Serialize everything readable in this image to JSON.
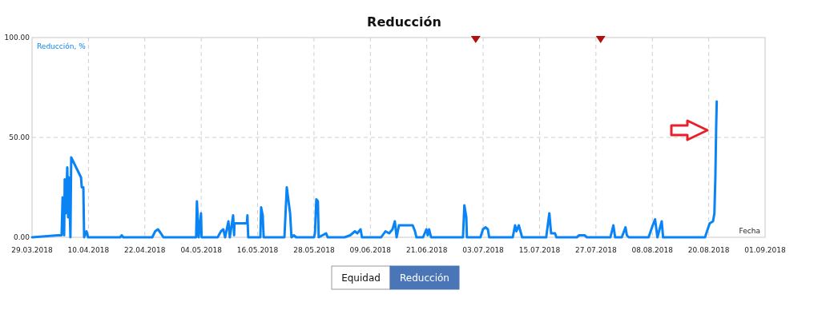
{
  "chart_data": {
    "type": "line",
    "title": "Reducción",
    "xlabel": "Fecha",
    "ylabel": "Reducción, %",
    "xlim": [
      "2018-03-29",
      "2018-09-01"
    ],
    "xticks": [
      {
        "value": "2018-03-29",
        "label": "29.03.2018"
      },
      {
        "value": "2018-04-10",
        "label": "10.04.2018"
      },
      {
        "value": "2018-04-22",
        "label": "22.04.2018"
      },
      {
        "value": "2018-05-04",
        "label": "04.05.2018"
      },
      {
        "value": "2018-05-16",
        "label": "16.05.2018"
      },
      {
        "value": "2018-05-28",
        "label": "28.05.2018"
      },
      {
        "value": "2018-06-09",
        "label": "09.06.2018"
      },
      {
        "value": "2018-06-21",
        "label": "21.06.2018"
      },
      {
        "value": "2018-07-03",
        "label": "03.07.2018"
      },
      {
        "value": "2018-07-15",
        "label": "15.07.2018"
      },
      {
        "value": "2018-07-27",
        "label": "27.07.2018"
      },
      {
        "value": "2018-08-08",
        "label": "08.08.2018"
      },
      {
        "value": "2018-08-20",
        "label": "20.08.2018"
      },
      {
        "value": "2018-09-01",
        "label": "01.09.2018"
      }
    ],
    "ylim": [
      0,
      100
    ],
    "yticks": [
      {
        "value": 0,
        "label": "0.00"
      },
      {
        "value": 50,
        "label": "50.00"
      },
      {
        "value": 100,
        "label": "100.00"
      }
    ],
    "grid": true,
    "line_style": "solid",
    "annotations": [
      "Equidad",
      "Reducción"
    ],
    "series": [
      {
        "color": "#0a84f5",
        "x": [
          "2018-03-29T00:00",
          "2018-04-03T11:00",
          "2018-04-04T07:00",
          "2018-04-04T12:00",
          "2018-04-04T20:00",
          "2018-04-04T23:00",
          "2018-04-05T04:00",
          "2018-04-05T12:00",
          "2018-04-05T16:00",
          "2018-04-05T20:00",
          "2018-04-06T04:00",
          "2018-04-06T08:00",
          "2018-04-08T10:00",
          "2018-04-08T14:00",
          "2018-04-08T22:00",
          "2018-04-09T02:00",
          "2018-04-09T14:00",
          "2018-04-09T22:00",
          "2018-04-16T18:00",
          "2018-04-17T02:00",
          "2018-04-17T10:00",
          "2018-04-23T14:00",
          "2018-04-24T05:00",
          "2018-04-24T19:00",
          "2018-04-25T10:00",
          "2018-04-25T23:00",
          "2018-05-02T22:00",
          "2018-05-03T02:00",
          "2018-05-03T11:00",
          "2018-05-03T23:00",
          "2018-05-04T02:00",
          "2018-05-07T12:00",
          "2018-05-08T05:00",
          "2018-05-08T17:00",
          "2018-05-09T02:00",
          "2018-05-09T19:00",
          "2018-05-10T02:00",
          "2018-05-10T19:00",
          "2018-05-11T00:00",
          "2018-05-11T02:00",
          "2018-05-13T17:00",
          "2018-05-13T20:00",
          "2018-05-14T00:00",
          "2018-05-16T14:00",
          "2018-05-16T18:00",
          "2018-05-17T02:00",
          "2018-05-17T07:00",
          "2018-05-21T17:00",
          "2018-05-22T05:00",
          "2018-05-22T22:00",
          "2018-05-23T05:00",
          "2018-05-23T17:00",
          "2018-05-24T05:00",
          "2018-05-28T00:00",
          "2018-05-28T05:00",
          "2018-05-28T12:00",
          "2018-05-28T20:00",
          "2018-05-29T00:00",
          "2018-05-30T14:00",
          "2018-05-30T22:00",
          "2018-06-03T12:00",
          "2018-06-04T17:00",
          "2018-06-05T17:00",
          "2018-06-06T05:00",
          "2018-06-06T22:00",
          "2018-06-07T05:00",
          "2018-06-11T07:00",
          "2018-06-12T05:00",
          "2018-06-13T00:00",
          "2018-06-13T17:00",
          "2018-06-14T05:00",
          "2018-06-14T14:00",
          "2018-06-15T02:00",
          "2018-06-18T00:00",
          "2018-06-18T12:00",
          "2018-06-18T19:00",
          "2018-06-20T05:00",
          "2018-06-20T22:00",
          "2018-06-21T05:00",
          "2018-06-21T12:00",
          "2018-06-21T22:00",
          "2018-06-28T17:00",
          "2018-06-29T00:00",
          "2018-06-29T10:00",
          "2018-06-29T13:00",
          "2018-07-02T10:00",
          "2018-07-02T23:00",
          "2018-07-03T12:00",
          "2018-07-04T00:00",
          "2018-07-04T07:00",
          "2018-07-09T07:00",
          "2018-07-09T19:00",
          "2018-07-10T02:00",
          "2018-07-10T14:00",
          "2018-07-11T07:00",
          "2018-07-16T10:00",
          "2018-07-17T02:00",
          "2018-07-17T11:00",
          "2018-07-18T07:00",
          "2018-07-18T14:00",
          "2018-07-22T22:00",
          "2018-07-23T10:00",
          "2018-07-24T14:00",
          "2018-07-25T02:00",
          "2018-07-30T02:00",
          "2018-07-30T17:00",
          "2018-07-31T02:00",
          "2018-08-01T12:00",
          "2018-08-02T07:00",
          "2018-08-02T14:00",
          "2018-08-03T00:00",
          "2018-08-07T05:00",
          "2018-08-08T02:00",
          "2018-08-08T14:00",
          "2018-08-09T02:00",
          "2018-08-10T00:00",
          "2018-08-10T07:00",
          "2018-08-15T19:00",
          "2018-08-19T05:00",
          "2018-08-20T05:00",
          "2018-08-20T22:00",
          "2018-08-21T05:00",
          "2018-08-21T10:00",
          "2018-08-21T14:00",
          "2018-08-21T17:00"
        ],
        "values": [
          0,
          1,
          1,
          20,
          1,
          29,
          12,
          35,
          10,
          30,
          0,
          40,
          30,
          25,
          25,
          0,
          3,
          0,
          0,
          1,
          0,
          0,
          3,
          4,
          2,
          0,
          0,
          18,
          0,
          12,
          0,
          0,
          3,
          4,
          0,
          8,
          0,
          11,
          1,
          7,
          7,
          11,
          0,
          0,
          15,
          11,
          0,
          0,
          25,
          12,
          0,
          1,
          0,
          0,
          2,
          19,
          18,
          0,
          2,
          0,
          0,
          1,
          3,
          2,
          4,
          0,
          0,
          3,
          2,
          4,
          8,
          0,
          6,
          6,
          3,
          0,
          0,
          4,
          1,
          4,
          0,
          0,
          16,
          10,
          0,
          0,
          4,
          5,
          4,
          0,
          0,
          6,
          3,
          6,
          0,
          0,
          12,
          2,
          2,
          0,
          0,
          1,
          1,
          0,
          0,
          6,
          0,
          0,
          5,
          1,
          0,
          0,
          6,
          9,
          0,
          8,
          0,
          0,
          0,
          7,
          8,
          12,
          30,
          55,
          68
        ]
      },
      {
        "type": "scatter",
        "marker": "triangle",
        "color": "#b01010",
        "x": [
          "2018-07-01T10:00",
          "2018-07-28T00:00"
        ],
        "values": [
          100,
          100
        ]
      }
    ]
  }
}
